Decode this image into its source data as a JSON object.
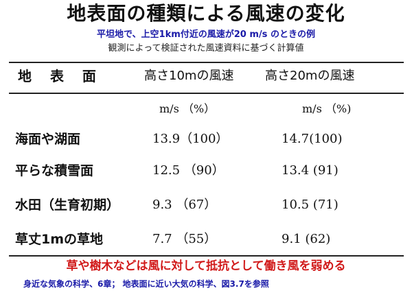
{
  "header": {
    "title": "地表面の種類による風速の変化",
    "subtitle": "平坦地で、上空1km付近の風速が20 m/s のときの例",
    "note": "観測によって検証された風速資料に基づく計算値"
  },
  "table": {
    "headers": {
      "surface": "地 表 面",
      "h10": "高さ10mの風速",
      "h20": "高さ20mの風速"
    },
    "units": {
      "h10": "m/s （%）",
      "h20": "m/s （%)"
    },
    "rows": [
      {
        "surface": "海面や湖面",
        "h10": "13.9（100）",
        "h20": "14.7(100)"
      },
      {
        "surface": "平らな積雪面",
        "h10": "12.5 （90）",
        "h20": "13.4 (91)"
      },
      {
        "surface": "水田（生育初期）",
        "h10": "9.3 （67）",
        "h20": "10.5 (71)"
      },
      {
        "surface": "草丈1mの草地",
        "h10": "7.7 （55）",
        "h20": "9.1 (62)"
      }
    ]
  },
  "footer": {
    "conclusion": "草や樹木などは風に対して抵抗として働き風を弱める",
    "reference": "身近な気象の科学、6章； 地表面に近い大気の科学、図3.7を参照"
  },
  "colors": {
    "title": "#111111",
    "subtitle": "#1a1aa8",
    "conclusion": "#d11a1a",
    "reference": "#1a1aa8"
  }
}
